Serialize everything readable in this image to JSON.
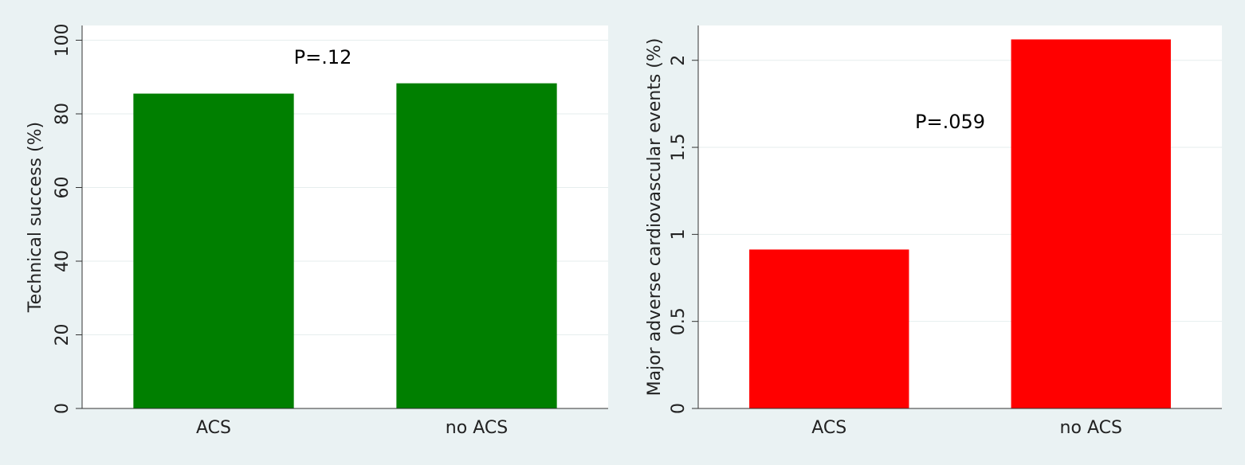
{
  "chart_data": [
    {
      "type": "bar",
      "ylabel": "Technical success (%)",
      "categories": [
        "ACS",
        "no ACS"
      ],
      "values": [
        85.5,
        88.3
      ],
      "color": "#007f00",
      "ylim": [
        0,
        104
      ],
      "yticks": [
        0,
        20,
        40,
        60,
        80,
        100
      ],
      "grid": true,
      "annotation": "P=.12"
    },
    {
      "type": "bar",
      "ylabel": "Major adverse cardiovascular events (%)",
      "categories": [
        "ACS",
        "no ACS"
      ],
      "values": [
        0.913,
        2.12
      ],
      "color": "#ff0000",
      "ylim": [
        0,
        2.2
      ],
      "yticks": [
        0,
        0.5,
        1,
        1.5,
        2
      ],
      "grid": true,
      "annotation": "P=.059"
    }
  ]
}
